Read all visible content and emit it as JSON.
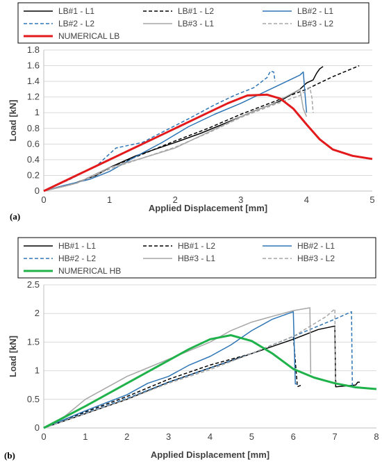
{
  "chart_data": [
    {
      "type": "line",
      "panel_label": "(a)",
      "xlabel": "Applied Displacement [mm]",
      "ylabel": "Load [kN]",
      "xlim": [
        0,
        5
      ],
      "ylim": [
        0,
        1.8
      ],
      "xticks": [
        0,
        1,
        2,
        3,
        4,
        5
      ],
      "yticks": [
        0,
        0.2,
        0.4,
        0.6,
        0.8,
        1,
        1.2,
        1.4,
        1.6,
        1.8
      ],
      "ytick_labels": [
        "0",
        "0.2",
        "0.4",
        "0.6",
        "0.8",
        "1",
        "1.2",
        "1.4",
        "1.6",
        "1.8"
      ],
      "grid": "horizontal",
      "legend_position": "top",
      "series": [
        {
          "name": "LB#1 - L1",
          "color": "#000000",
          "dash": "solid",
          "width": 1.5,
          "x": [
            0,
            0.4,
            0.8,
            1.0,
            1.4,
            2.0,
            2.4,
            2.8,
            3.2,
            3.6,
            3.9,
            4.0,
            4.1,
            4.15,
            4.2,
            4.25
          ],
          "y": [
            0,
            0.08,
            0.2,
            0.3,
            0.45,
            0.62,
            0.74,
            0.88,
            1.02,
            1.15,
            1.3,
            1.38,
            1.42,
            1.5,
            1.56,
            1.59
          ]
        },
        {
          "name": "LB#1 - L2",
          "color": "#000000",
          "dash": "dashed",
          "width": 1.5,
          "x": [
            0,
            0.5,
            1.0,
            1.5,
            2.0,
            2.5,
            3.0,
            3.5,
            4.0,
            4.4,
            4.8
          ],
          "y": [
            0,
            0.1,
            0.3,
            0.47,
            0.64,
            0.8,
            0.98,
            1.14,
            1.3,
            1.46,
            1.6
          ]
        },
        {
          "name": "LB#2 - L1",
          "color": "#2e75b6",
          "dash": "solid",
          "width": 1.5,
          "x": [
            0,
            0.3,
            0.7,
            1.0,
            1.4,
            1.8,
            2.2,
            2.6,
            3.0,
            3.4,
            3.7,
            3.9,
            3.95,
            3.98,
            4.0
          ],
          "y": [
            0,
            0.07,
            0.15,
            0.25,
            0.44,
            0.62,
            0.82,
            0.98,
            1.12,
            1.28,
            1.4,
            1.48,
            1.52,
            1.2,
            1.0
          ]
        },
        {
          "name": "LB#2 - L2",
          "color": "#2e75b6",
          "dash": "dashed",
          "width": 1.5,
          "x": [
            0,
            0.4,
            0.8,
            1.1,
            1.5,
            1.8,
            2.2,
            2.6,
            2.9,
            3.2,
            3.4,
            3.45,
            3.5,
            3.52
          ],
          "y": [
            0,
            0.15,
            0.32,
            0.55,
            0.62,
            0.75,
            0.92,
            1.1,
            1.22,
            1.32,
            1.45,
            1.53,
            1.52,
            1.4
          ]
        },
        {
          "name": "LB#3 - L1",
          "color": "#a6a6a6",
          "dash": "solid",
          "width": 1.5,
          "x": [
            0,
            0.5,
            1.0,
            1.5,
            2.0,
            2.5,
            3.0,
            3.5,
            3.9,
            3.95,
            4.0
          ],
          "y": [
            0,
            0.1,
            0.3,
            0.42,
            0.55,
            0.75,
            0.95,
            1.12,
            1.3,
            1.05,
            0.95
          ]
        },
        {
          "name": "LB#3 - L2",
          "color": "#a6a6a6",
          "dash": "dashed",
          "width": 1.5,
          "x": [
            0,
            0.5,
            1.0,
            1.5,
            2.0,
            2.5,
            3.0,
            3.5,
            3.9,
            4.05,
            4.08,
            4.1
          ],
          "y": [
            0,
            0.1,
            0.28,
            0.42,
            0.56,
            0.74,
            0.94,
            1.1,
            1.22,
            1.32,
            1.2,
            1.0
          ]
        },
        {
          "name": "NUMERICAL LB",
          "color": "#e31a1c",
          "dash": "solid",
          "width": 3,
          "x": [
            0,
            0.5,
            1.0,
            1.5,
            2.0,
            2.5,
            2.8,
            3.1,
            3.4,
            3.6,
            3.8,
            4.0,
            4.2,
            4.4,
            4.7,
            5.0
          ],
          "y": [
            0,
            0.2,
            0.4,
            0.6,
            0.8,
            1.0,
            1.12,
            1.22,
            1.23,
            1.18,
            1.05,
            0.85,
            0.66,
            0.53,
            0.45,
            0.41
          ]
        }
      ]
    },
    {
      "type": "line",
      "panel_label": "(b)",
      "xlabel": "Applied Displacement [mm]",
      "ylabel": "Load [kN]",
      "xlim": [
        0,
        8
      ],
      "ylim": [
        0,
        2.5
      ],
      "xticks": [
        0,
        1,
        2,
        3,
        4,
        5,
        6,
        7,
        8
      ],
      "yticks": [
        0,
        0.5,
        1,
        1.5,
        2,
        2.5
      ],
      "ytick_labels": [
        "0",
        "0.5",
        "1",
        "1.5",
        "2",
        "2.5"
      ],
      "grid": "horizontal",
      "legend_position": "top",
      "series": [
        {
          "name": "HB#1 - L1",
          "color": "#000000",
          "dash": "solid",
          "width": 1.5,
          "x": [
            0,
            1.0,
            2.0,
            3.0,
            4.0,
            5.0,
            6.0,
            6.6,
            7.0,
            7.02,
            7.5,
            7.55,
            7.6
          ],
          "y": [
            0,
            0.25,
            0.5,
            0.8,
            1.05,
            1.3,
            1.55,
            1.72,
            1.78,
            0.72,
            0.75,
            0.8,
            0.8
          ]
        },
        {
          "name": "HB#1 - L2",
          "color": "#000000",
          "dash": "dashed",
          "width": 1.5,
          "x": [
            0,
            1.0,
            2.0,
            3.0,
            4.0,
            5.0,
            5.5,
            6.0,
            6.1,
            6.2
          ],
          "y": [
            0,
            0.28,
            0.55,
            0.85,
            1.1,
            1.3,
            1.45,
            1.6,
            0.72,
            0.75
          ]
        },
        {
          "name": "HB#2 - L1",
          "color": "#2e75b6",
          "dash": "solid",
          "width": 1.5,
          "x": [
            0,
            1.0,
            2.0,
            2.5,
            3.0,
            3.5,
            4.0,
            4.5,
            5.0,
            5.5,
            6.0,
            6.05,
            6.1
          ],
          "y": [
            0,
            0.3,
            0.58,
            0.78,
            0.9,
            1.1,
            1.25,
            1.45,
            1.7,
            1.9,
            2.03,
            0.77,
            0.77
          ]
        },
        {
          "name": "HB#2 - L2",
          "color": "#2e75b6",
          "dash": "dashed",
          "width": 1.5,
          "x": [
            0,
            1.0,
            2.0,
            3.0,
            4.0,
            5.0,
            6.0,
            7.0,
            7.4,
            7.42,
            7.45
          ],
          "y": [
            0,
            0.26,
            0.52,
            0.8,
            1.05,
            1.3,
            1.6,
            1.9,
            2.03,
            0.7,
            0.72
          ]
        },
        {
          "name": "HB#3 - L1",
          "color": "#a6a6a6",
          "dash": "solid",
          "width": 1.5,
          "x": [
            0,
            0.5,
            1.0,
            1.5,
            2.0,
            2.5,
            3.0,
            3.5,
            4.0,
            4.5,
            5.0,
            5.5,
            6.0,
            6.4,
            6.42
          ],
          "y": [
            0,
            0.2,
            0.5,
            0.7,
            0.9,
            1.05,
            1.2,
            1.35,
            1.5,
            1.7,
            1.85,
            1.95,
            2.05,
            2.1,
            0.95
          ]
        },
        {
          "name": "HB#3 - L2",
          "color": "#a6a6a6",
          "dash": "dashed",
          "width": 1.5,
          "x": [
            0,
            1.0,
            2.0,
            3.0,
            4.0,
            5.0,
            6.0,
            6.8,
            7.0,
            7.02,
            7.05
          ],
          "y": [
            0,
            0.25,
            0.5,
            0.78,
            1.02,
            1.3,
            1.6,
            1.95,
            2.08,
            0.8,
            0.82
          ]
        },
        {
          "name": "NUMERICAL HB",
          "color": "#1fb24a",
          "dash": "solid",
          "width": 3,
          "x": [
            0,
            1.0,
            2.0,
            3.0,
            3.5,
            4.0,
            4.5,
            5.0,
            5.5,
            6.0,
            6.5,
            7.0,
            7.5,
            8.0
          ],
          "y": [
            0,
            0.38,
            0.78,
            1.18,
            1.38,
            1.55,
            1.62,
            1.52,
            1.3,
            1.03,
            0.88,
            0.78,
            0.71,
            0.68
          ]
        }
      ]
    }
  ]
}
